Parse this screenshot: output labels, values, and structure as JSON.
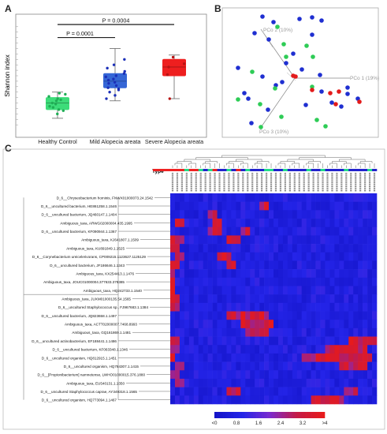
{
  "panels": {
    "a": {
      "letter": "A",
      "chart_data": {
        "type": "box",
        "ylabel": "Shannon index",
        "categories": [
          "Healthy Control",
          "Mild Alopecia areata",
          "Severe Alopecia areata"
        ],
        "colors": [
          "#3ddc79",
          "#3566d6",
          "#ee1f1f"
        ],
        "boxes": [
          {
            "min": 1.8,
            "q1": 2.2,
            "median": 2.5,
            "q3": 2.75,
            "max": 3.0
          },
          {
            "min": 2.6,
            "q1": 3.2,
            "median": 3.5,
            "q3": 3.85,
            "max": 5.0
          },
          {
            "min": 2.7,
            "q1": 3.75,
            "median": 4.15,
            "q3": 4.5,
            "max": 4.7
          }
        ],
        "points": [
          [
            2.0,
            2.2,
            2.35,
            2.5,
            2.6,
            2.7,
            2.8,
            2.9,
            2.95,
            2.45,
            2.3,
            2.15,
            2.65
          ],
          [
            2.7,
            2.85,
            3.0,
            3.1,
            3.2,
            3.3,
            3.45,
            3.55,
            3.7,
            3.85,
            3.95,
            4.1,
            4.25,
            4.5,
            3.4,
            3.6,
            3.75,
            3.15
          ],
          [
            2.7,
            3.8,
            4.3,
            4.6,
            4.15
          ]
        ],
        "brackets": [
          {
            "from": 0,
            "to": 1,
            "label": "P = 0.0001"
          },
          {
            "from": 0,
            "to": 2,
            "label": "P = 0.0004"
          }
        ]
      }
    },
    "b": {
      "letter": "B",
      "chart_data": {
        "type": "scatter3d",
        "axis_labels": [
          "PCo 1 (19%)",
          "PCo 2 (10%)",
          "PCo 3 (10%)"
        ],
        "series_colors": [
          "#2ecc56",
          "#1f2fd1",
          "#e31b1b"
        ]
      }
    },
    "c": {
      "letter": "C",
      "chart_data": {
        "type": "heatmap",
        "type_label": "Type",
        "row_labels": [
          "D_6__Chryseobacterium hominis, FNWX01000073.24.1542",
          "D_6__uncultured bacterium, HE861258.1.1546",
          "D_6__uncultured bacterium, JQ460147.1.1404",
          "Ambiguous_taxa, ARWG02000004.435.1995",
          "D_6__uncultured bacterium, KF090944.1.1367",
          "Ambiguous_taxa, KJ641807.1.1509",
          "Ambiguous_taxa, KU891849.1.1525",
          "D_6__Corynebacterium ureicelerivorans, CP009215.1123627.1125129",
          "D_6__uncultured bacterium, JF186646.1.1343",
          "Ambiguous_taxa, KX254413.1.1476",
          "Ambiguous_taxa, JOUC01000004.377633.379385",
          "Ambiguous_taxa, HQ242733.1.1540",
          "Ambiguous_taxa, JUXM01000135.54.1565",
          "D_6__uncultured Staphylococcus sp., FJ967683.1.1384",
          "D_6__uncultured bacterium, JQ823658.1.1497",
          "Ambiguous_taxa, ACTT02000007.7468.8993",
          "Ambiguous_taxa, GQ161869.1.1481",
          "D_6__uncultured actinobacterium, EF188441.1.1486",
          "D_6__uncultured bacterium, KF063348.1.1346",
          "D_6__uncultured organism, HQ812915.1.1451",
          "D_6__uncultured organism, HQ784307.1.1415",
          "D_6__[Propionibacterium] namnetense, LWHO01000015.376.1880",
          "Ambiguous_taxa, EU540131.1.1350",
          "D_6__uncultured Staphylococcus caprae, AY349318.1.1565",
          "D_6__uncultured organism, HQ773094.1.1467"
        ],
        "legend": {
          "ticks": [
            "<0",
            "0.8",
            "1.6",
            "2.4",
            "3.2",
            ">4"
          ],
          "colors": [
            "#1414c8",
            "#2424e8",
            "#7a2bcf",
            "#c41a46",
            "#e81a1a"
          ]
        }
      }
    }
  }
}
